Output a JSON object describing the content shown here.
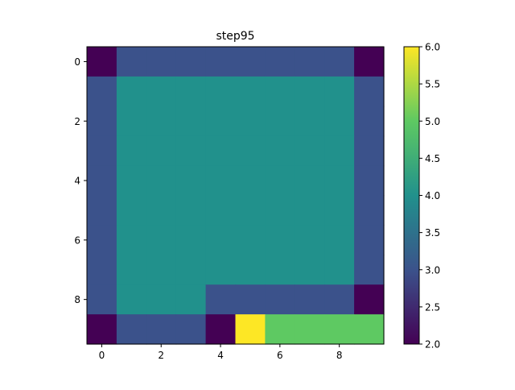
{
  "chart_data": {
    "type": "heatmap",
    "title": "step95",
    "xlabel": "",
    "ylabel": "",
    "x_ticks": [
      "0",
      "2",
      "4",
      "6",
      "8"
    ],
    "y_ticks": [
      "0",
      "2",
      "4",
      "6",
      "8"
    ],
    "xlim": [
      -0.5,
      9.5
    ],
    "ylim": [
      9.5,
      -0.5
    ],
    "colormap": "viridis",
    "vmin": 2.0,
    "vmax": 6.0,
    "colorbar_ticks": [
      "2.0",
      "2.5",
      "3.0",
      "3.5",
      "4.0",
      "4.5",
      "5.0",
      "5.5",
      "6.0"
    ],
    "grid": false,
    "values": [
      [
        2,
        3,
        3,
        3,
        3,
        3,
        3,
        3,
        3,
        2
      ],
      [
        3,
        4,
        4,
        4,
        4,
        4,
        4,
        4,
        4,
        3
      ],
      [
        3,
        4,
        4,
        4,
        4,
        4,
        4,
        4,
        4,
        3
      ],
      [
        3,
        4,
        4,
        4,
        4,
        4,
        4,
        4,
        4,
        3
      ],
      [
        3,
        4,
        4,
        4,
        4,
        4,
        4,
        4,
        4,
        3
      ],
      [
        3,
        4,
        4,
        4,
        4,
        4,
        4,
        4,
        4,
        3
      ],
      [
        3,
        4,
        4,
        4,
        4,
        4,
        4,
        4,
        4,
        3
      ],
      [
        3,
        4,
        4,
        4,
        4,
        4,
        4,
        4,
        4,
        3
      ],
      [
        3,
        4,
        4,
        4,
        3,
        3,
        3,
        3,
        3,
        2
      ],
      [
        2,
        3,
        3,
        3,
        2,
        6,
        5,
        5,
        5,
        5
      ]
    ]
  }
}
